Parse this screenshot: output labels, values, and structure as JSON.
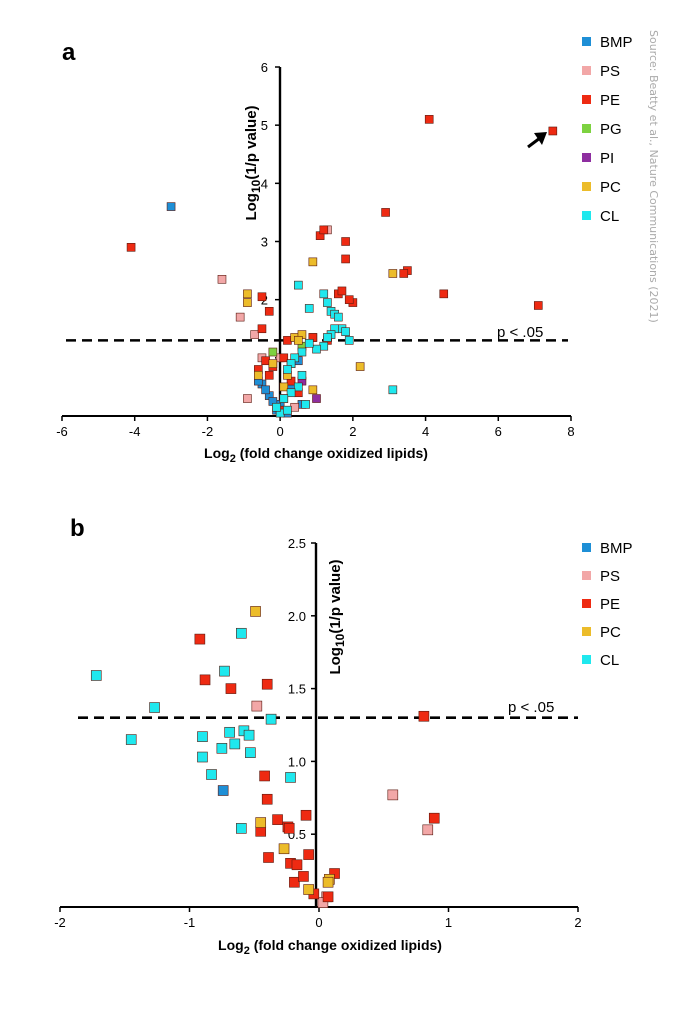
{
  "source_note": "Source: Beatty et al., Nature Communications (2021)",
  "colors": {
    "BMP": "#1e8fd6",
    "PS": "#f2a7a7",
    "PE": "#ee2a12",
    "PG": "#7dd240",
    "PI": "#8e2ea0",
    "PC": "#ecbc2a",
    "CL": "#1fe8ee"
  },
  "chart_data": [
    {
      "type": "scatter",
      "panel_label": "a",
      "xlabel_main": "Log",
      "xlabel_sub": "2",
      "xlabel_rest": " (fold change oxidized lipids)",
      "ylabel_main": "Log",
      "ylabel_sub": "10",
      "ylabel_rest": "(1/p value)",
      "xlim": [
        -6,
        8
      ],
      "ylim": [
        0,
        6
      ],
      "xticks": [
        -6,
        -4,
        -2,
        0,
        2,
        4,
        6,
        8
      ],
      "yticks": [
        1,
        2,
        3,
        4,
        5,
        6
      ],
      "tick_labels_x": [
        "-6",
        "-4",
        "-2",
        "0",
        "2",
        "4",
        "6",
        "8"
      ],
      "tick_labels_y": [
        "1",
        "2",
        "3",
        "4",
        "5",
        "6"
      ],
      "threshold_y": 1.3,
      "threshold_label": "p < .05",
      "legend": [
        "BMP",
        "PS",
        "PE",
        "PG",
        "PI",
        "PC",
        "CL"
      ],
      "annotation": "arrow pointing to PE point at (7.5, 4.9)",
      "series": [
        {
          "name": "BMP",
          "points": [
            [
              -3.0,
              3.6
            ],
            [
              0.5,
              0.95
            ],
            [
              -0.5,
              0.55
            ],
            [
              -0.3,
              0.35
            ],
            [
              0.0,
              0.2
            ],
            [
              -0.1,
              0.1
            ],
            [
              0.1,
              0.3
            ],
            [
              -0.4,
              0.45
            ],
            [
              0.2,
              0.05
            ],
            [
              -0.2,
              0.25
            ],
            [
              0.3,
              0.5
            ],
            [
              0.6,
              0.2
            ],
            [
              -0.6,
              0.6
            ]
          ]
        },
        {
          "name": "PS",
          "points": [
            [
              -1.6,
              2.35
            ],
            [
              1.3,
              3.2
            ],
            [
              -1.1,
              1.7
            ],
            [
              -0.7,
              1.4
            ],
            [
              -0.9,
              0.3
            ],
            [
              0.0,
              1.0
            ],
            [
              0.9,
              1.35
            ],
            [
              -0.5,
              1.0
            ],
            [
              0.4,
              0.15
            ]
          ]
        },
        {
          "name": "PE",
          "points": [
            [
              7.5,
              4.9
            ],
            [
              4.1,
              5.1
            ],
            [
              -4.1,
              2.9
            ],
            [
              2.9,
              3.5
            ],
            [
              1.1,
              3.1
            ],
            [
              1.2,
              3.2
            ],
            [
              1.8,
              3.0
            ],
            [
              1.8,
              2.7
            ],
            [
              3.5,
              2.5
            ],
            [
              3.4,
              2.45
            ],
            [
              4.5,
              2.1
            ],
            [
              7.1,
              1.9
            ],
            [
              2.0,
              1.95
            ],
            [
              1.9,
              2.0
            ],
            [
              1.6,
              2.1
            ],
            [
              1.7,
              2.15
            ],
            [
              -0.5,
              2.05
            ],
            [
              -0.3,
              1.8
            ],
            [
              -0.5,
              1.5
            ],
            [
              0.2,
              1.3
            ],
            [
              0.9,
              1.35
            ],
            [
              1.3,
              1.3
            ],
            [
              -0.4,
              0.95
            ],
            [
              -0.2,
              0.85
            ],
            [
              0.1,
              1.0
            ],
            [
              -0.6,
              0.8
            ],
            [
              0.3,
              0.6
            ],
            [
              -0.3,
              0.7
            ],
            [
              0.0,
              0.1
            ],
            [
              0.5,
              0.4
            ]
          ]
        },
        {
          "name": "PG",
          "points": [
            [
              -0.2,
              1.1
            ],
            [
              0.6,
              1.2
            ]
          ]
        },
        {
          "name": "PI",
          "points": [
            [
              1.0,
              0.3
            ],
            [
              0.6,
              0.6
            ],
            [
              0.3,
              0.9
            ]
          ]
        },
        {
          "name": "PC",
          "points": [
            [
              -0.9,
              2.1
            ],
            [
              -0.9,
              1.95
            ],
            [
              3.1,
              2.45
            ],
            [
              0.9,
              2.65
            ],
            [
              0.4,
              1.35
            ],
            [
              0.6,
              1.4
            ],
            [
              -0.2,
              0.9
            ],
            [
              0.2,
              0.7
            ],
            [
              2.2,
              0.85
            ],
            [
              0.9,
              0.45
            ],
            [
              -0.6,
              0.7
            ],
            [
              0.1,
              0.5
            ],
            [
              0.5,
              1.3
            ]
          ]
        },
        {
          "name": "CL",
          "points": [
            [
              0.5,
              2.25
            ],
            [
              0.8,
              1.85
            ],
            [
              1.2,
              2.1
            ],
            [
              1.3,
              1.95
            ],
            [
              1.4,
              1.8
            ],
            [
              1.5,
              1.75
            ],
            [
              1.6,
              1.7
            ],
            [
              1.7,
              1.5
            ],
            [
              1.8,
              1.45
            ],
            [
              1.5,
              1.5
            ],
            [
              1.4,
              1.4
            ],
            [
              1.3,
              1.35
            ],
            [
              1.9,
              1.3
            ],
            [
              1.2,
              1.2
            ],
            [
              1.0,
              1.15
            ],
            [
              0.8,
              1.25
            ],
            [
              0.6,
              1.1
            ],
            [
              0.4,
              1.0
            ],
            [
              0.3,
              0.9
            ],
            [
              0.2,
              0.8
            ],
            [
              0.6,
              0.7
            ],
            [
              0.5,
              0.5
            ],
            [
              0.3,
              0.4
            ],
            [
              0.1,
              0.3
            ],
            [
              0.7,
              0.2
            ],
            [
              3.1,
              0.45
            ],
            [
              0.0,
              0.05
            ],
            [
              -0.1,
              0.15
            ],
            [
              0.2,
              0.1
            ]
          ]
        }
      ]
    },
    {
      "type": "scatter",
      "panel_label": "b",
      "xlabel_main": "Log",
      "xlabel_sub": "2",
      "xlabel_rest": " (fold change oxidized lipids)",
      "ylabel_main": "Log",
      "ylabel_sub": "10",
      "ylabel_rest": "(1/p value)",
      "xlim": [
        -2,
        2
      ],
      "ylim": [
        0,
        2.5
      ],
      "xticks": [
        -2,
        -1,
        0,
        1,
        2
      ],
      "yticks": [
        0.5,
        1.0,
        1.5,
        2.0,
        2.5
      ],
      "tick_labels_x": [
        "-2",
        "-1",
        "0",
        "1",
        "2"
      ],
      "tick_labels_y": [
        "0.5",
        "1.0",
        "1.5",
        "2.0",
        "2.5"
      ],
      "threshold_y": 1.3,
      "threshold_label": "p < .05",
      "legend": [
        "BMP",
        "PS",
        "PE",
        "PC",
        "CL"
      ],
      "series": [
        {
          "name": "BMP",
          "points": [
            [
              -0.74,
              0.8
            ]
          ]
        },
        {
          "name": "PS",
          "points": [
            [
              -0.48,
              1.38
            ],
            [
              0.57,
              0.77
            ],
            [
              0.84,
              0.53
            ],
            [
              0.06,
              0.07
            ],
            [
              0.03,
              0.03
            ]
          ]
        },
        {
          "name": "PE",
          "points": [
            [
              -0.92,
              1.84
            ],
            [
              -0.88,
              1.56
            ],
            [
              -0.68,
              1.5
            ],
            [
              -0.4,
              1.53
            ],
            [
              0.81,
              1.31
            ],
            [
              0.89,
              0.61
            ],
            [
              -0.42,
              0.9
            ],
            [
              -0.4,
              0.74
            ],
            [
              -0.32,
              0.6
            ],
            [
              -0.24,
              0.55
            ],
            [
              -0.23,
              0.54
            ],
            [
              -0.45,
              0.52
            ],
            [
              -0.1,
              0.63
            ],
            [
              -0.39,
              0.34
            ],
            [
              -0.08,
              0.36
            ],
            [
              -0.22,
              0.3
            ],
            [
              -0.17,
              0.29
            ],
            [
              0.12,
              0.23
            ],
            [
              -0.19,
              0.17
            ],
            [
              -0.12,
              0.21
            ],
            [
              -0.04,
              0.09
            ],
            [
              0.07,
              0.07
            ]
          ]
        },
        {
          "name": "PC",
          "points": [
            [
              -0.49,
              2.03
            ],
            [
              -0.45,
              0.58
            ],
            [
              -0.27,
              0.4
            ],
            [
              0.08,
              0.19
            ],
            [
              -0.08,
              0.12
            ],
            [
              0.07,
              0.17
            ]
          ]
        },
        {
          "name": "CL",
          "points": [
            [
              -1.72,
              1.59
            ],
            [
              -1.27,
              1.37
            ],
            [
              -1.45,
              1.15
            ],
            [
              -0.6,
              1.88
            ],
            [
              -0.73,
              1.62
            ],
            [
              -0.37,
              1.29
            ],
            [
              -0.69,
              1.2
            ],
            [
              -0.58,
              1.21
            ],
            [
              -0.9,
              1.17
            ],
            [
              -0.54,
              1.18
            ],
            [
              -0.65,
              1.12
            ],
            [
              -0.75,
              1.09
            ],
            [
              -0.53,
              1.06
            ],
            [
              -0.9,
              1.03
            ],
            [
              -0.83,
              0.91
            ],
            [
              -0.22,
              0.89
            ],
            [
              -0.6,
              0.54
            ]
          ]
        }
      ]
    }
  ]
}
